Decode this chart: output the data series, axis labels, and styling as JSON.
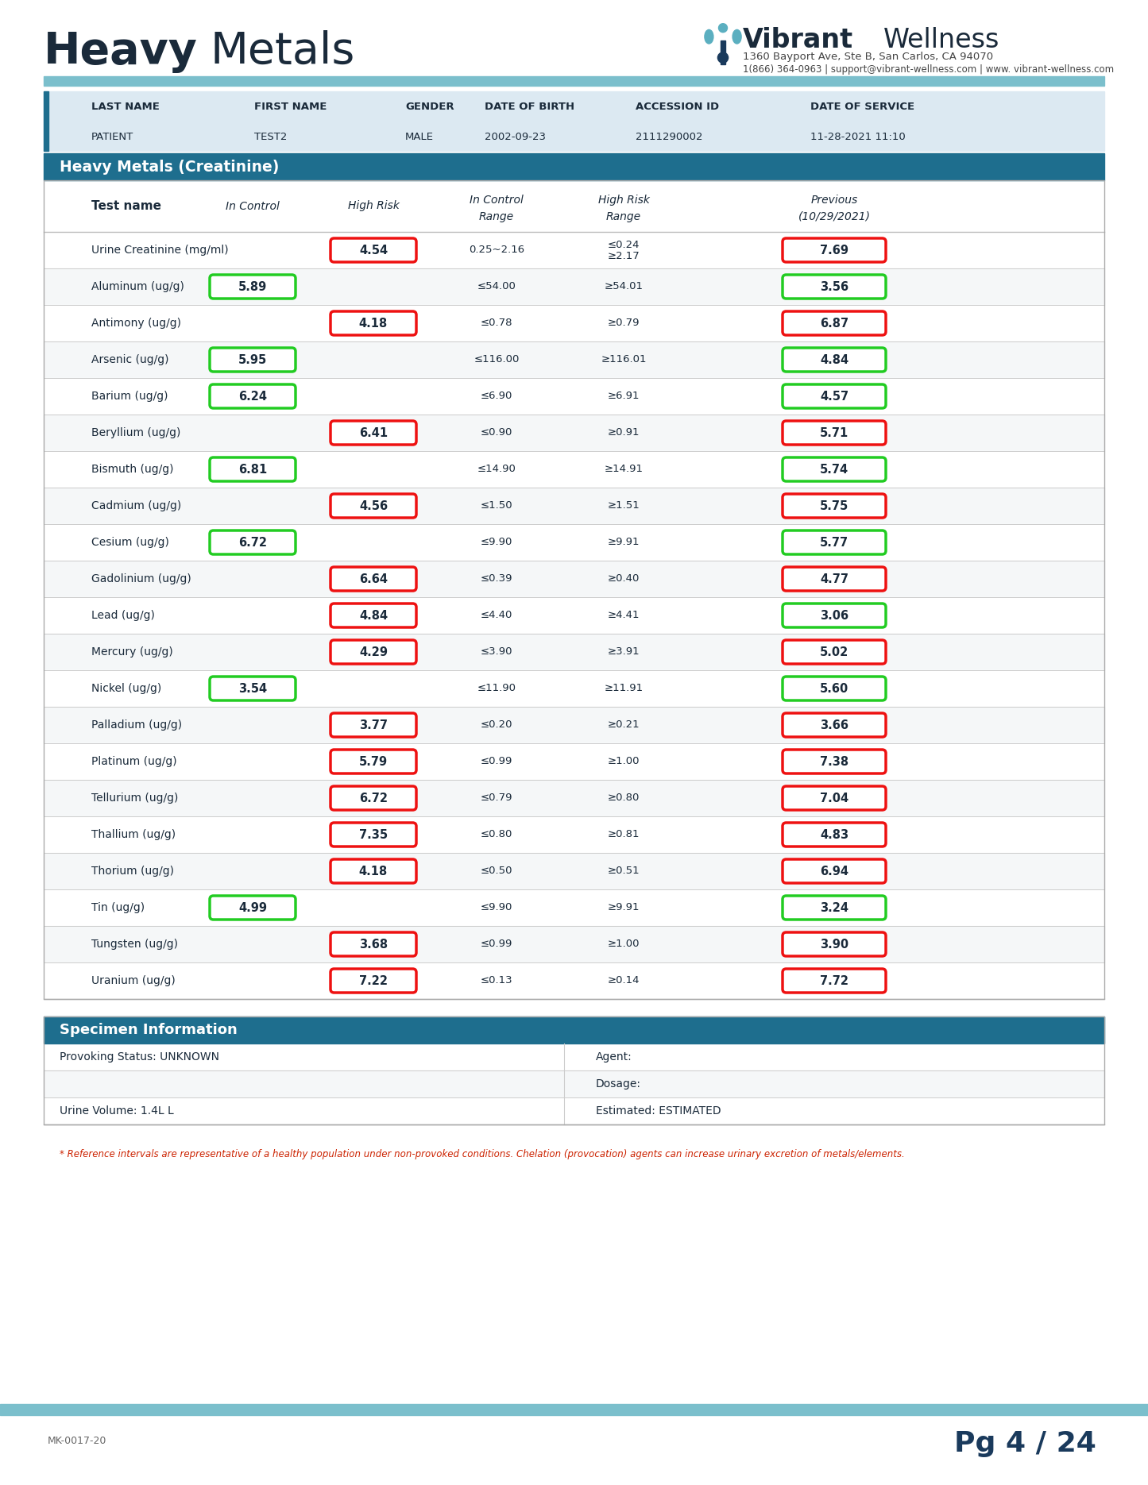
{
  "title_heavy": "Heavy",
  "title_metals": "Metals",
  "brand_vibrant": "Vibrant",
  "brand_wellness": "Wellness",
  "brand_address": "1360 Bayport Ave, Ste B, San Carlos, CA 94070",
  "brand_contact": "1(866) 364-0963 | support@vibrant-wellness.com | www. vibrant-wellness.com",
  "patient_fields": [
    "LAST NAME",
    "FIRST NAME",
    "GENDER",
    "DATE OF BIRTH",
    "ACCESSION ID",
    "DATE OF SERVICE"
  ],
  "patient_values": [
    "PATIENT",
    "TEST2",
    "MALE",
    "2002-09-23",
    "2111290002",
    "11-28-2021 11:10"
  ],
  "section_title": "Heavy Metals (Creatinine)",
  "col_headers": [
    "Test name",
    "In Control",
    "High Risk",
    "In Control\nRange",
    "High Risk\nRange",
    "Previous\n(10/29/2021)"
  ],
  "rows": [
    {
      "name": "Urine Creatinine (mg/ml)",
      "in_control": null,
      "high_risk": "4.54",
      "in_control_range": "0.25~2.16",
      "high_risk_range": "≤0.24\n≥2.17",
      "previous": "7.69",
      "in_control_color": null,
      "high_risk_color": "red",
      "previous_color": "red"
    },
    {
      "name": "Aluminum (ug/g)",
      "in_control": "5.89",
      "high_risk": null,
      "in_control_range": "≤54.00",
      "high_risk_range": "≥54.01",
      "previous": "3.56",
      "in_control_color": "green",
      "high_risk_color": null,
      "previous_color": "green"
    },
    {
      "name": "Antimony (ug/g)",
      "in_control": null,
      "high_risk": "4.18",
      "in_control_range": "≤0.78",
      "high_risk_range": "≥0.79",
      "previous": "6.87",
      "in_control_color": null,
      "high_risk_color": "red",
      "previous_color": "red"
    },
    {
      "name": "Arsenic (ug/g)",
      "in_control": "5.95",
      "high_risk": null,
      "in_control_range": "≤116.00",
      "high_risk_range": "≥116.01",
      "previous": "4.84",
      "in_control_color": "green",
      "high_risk_color": null,
      "previous_color": "green"
    },
    {
      "name": "Barium (ug/g)",
      "in_control": "6.24",
      "high_risk": null,
      "in_control_range": "≤6.90",
      "high_risk_range": "≥6.91",
      "previous": "4.57",
      "in_control_color": "green",
      "high_risk_color": null,
      "previous_color": "green"
    },
    {
      "name": "Beryllium (ug/g)",
      "in_control": null,
      "high_risk": "6.41",
      "in_control_range": "≤0.90",
      "high_risk_range": "≥0.91",
      "previous": "5.71",
      "in_control_color": null,
      "high_risk_color": "red",
      "previous_color": "red"
    },
    {
      "name": "Bismuth (ug/g)",
      "in_control": "6.81",
      "high_risk": null,
      "in_control_range": "≤14.90",
      "high_risk_range": "≥14.91",
      "previous": "5.74",
      "in_control_color": "green",
      "high_risk_color": null,
      "previous_color": "green"
    },
    {
      "name": "Cadmium (ug/g)",
      "in_control": null,
      "high_risk": "4.56",
      "in_control_range": "≤1.50",
      "high_risk_range": "≥1.51",
      "previous": "5.75",
      "in_control_color": null,
      "high_risk_color": "red",
      "previous_color": "red"
    },
    {
      "name": "Cesium (ug/g)",
      "in_control": "6.72",
      "high_risk": null,
      "in_control_range": "≤9.90",
      "high_risk_range": "≥9.91",
      "previous": "5.77",
      "in_control_color": "green",
      "high_risk_color": null,
      "previous_color": "green"
    },
    {
      "name": "Gadolinium (ug/g)",
      "in_control": null,
      "high_risk": "6.64",
      "in_control_range": "≤0.39",
      "high_risk_range": "≥0.40",
      "previous": "4.77",
      "in_control_color": null,
      "high_risk_color": "red",
      "previous_color": "red"
    },
    {
      "name": "Lead (ug/g)",
      "in_control": null,
      "high_risk": "4.84",
      "in_control_range": "≤4.40",
      "high_risk_range": "≥4.41",
      "previous": "3.06",
      "in_control_color": null,
      "high_risk_color": "red",
      "previous_color": "green"
    },
    {
      "name": "Mercury (ug/g)",
      "in_control": null,
      "high_risk": "4.29",
      "in_control_range": "≤3.90",
      "high_risk_range": "≥3.91",
      "previous": "5.02",
      "in_control_color": null,
      "high_risk_color": "red",
      "previous_color": "red"
    },
    {
      "name": "Nickel (ug/g)",
      "in_control": "3.54",
      "high_risk": null,
      "in_control_range": "≤11.90",
      "high_risk_range": "≥11.91",
      "previous": "5.60",
      "in_control_color": "green",
      "high_risk_color": null,
      "previous_color": "green"
    },
    {
      "name": "Palladium (ug/g)",
      "in_control": null,
      "high_risk": "3.77",
      "in_control_range": "≤0.20",
      "high_risk_range": "≥0.21",
      "previous": "3.66",
      "in_control_color": null,
      "high_risk_color": "red",
      "previous_color": "red"
    },
    {
      "name": "Platinum (ug/g)",
      "in_control": null,
      "high_risk": "5.79",
      "in_control_range": "≤0.99",
      "high_risk_range": "≥1.00",
      "previous": "7.38",
      "in_control_color": null,
      "high_risk_color": "red",
      "previous_color": "red"
    },
    {
      "name": "Tellurium (ug/g)",
      "in_control": null,
      "high_risk": "6.72",
      "in_control_range": "≤0.79",
      "high_risk_range": "≥0.80",
      "previous": "7.04",
      "in_control_color": null,
      "high_risk_color": "red",
      "previous_color": "red"
    },
    {
      "name": "Thallium (ug/g)",
      "in_control": null,
      "high_risk": "7.35",
      "in_control_range": "≤0.80",
      "high_risk_range": "≥0.81",
      "previous": "4.83",
      "in_control_color": null,
      "high_risk_color": "red",
      "previous_color": "red"
    },
    {
      "name": "Thorium (ug/g)",
      "in_control": null,
      "high_risk": "4.18",
      "in_control_range": "≤0.50",
      "high_risk_range": "≥0.51",
      "previous": "6.94",
      "in_control_color": null,
      "high_risk_color": "red",
      "previous_color": "red"
    },
    {
      "name": "Tin (ug/g)",
      "in_control": "4.99",
      "high_risk": null,
      "in_control_range": "≤9.90",
      "high_risk_range": "≥9.91",
      "previous": "3.24",
      "in_control_color": "green",
      "high_risk_color": null,
      "previous_color": "green"
    },
    {
      "name": "Tungsten (ug/g)",
      "in_control": null,
      "high_risk": "3.68",
      "in_control_range": "≤0.99",
      "high_risk_range": "≥1.00",
      "previous": "3.90",
      "in_control_color": null,
      "high_risk_color": "red",
      "previous_color": "red"
    },
    {
      "name": "Uranium (ug/g)",
      "in_control": null,
      "high_risk": "7.22",
      "in_control_range": "≤0.13",
      "high_risk_range": "≥0.14",
      "previous": "7.72",
      "in_control_color": null,
      "high_risk_color": "red",
      "previous_color": "red"
    }
  ],
  "specimen_title": "Specimen Information",
  "specimen_fields": [
    {
      "label": "Provoking Status: UNKNOWN",
      "right": "Agent:"
    },
    {
      "label": "",
      "right": "Dosage:"
    },
    {
      "label": "Urine Volume: 1.4L L",
      "right": "Estimated: ESTIMATED"
    }
  ],
  "footnote": "* Reference intervals are representative of a healthy population under non-provoked conditions. Chelation (provocation) agents can increase urinary excretion of metals/elements.",
  "page": "Pg 4 / 24",
  "doc_id": "MK-0017-20",
  "bg_color": "#ffffff",
  "header_teal": "#7bbfcc",
  "section_header_color": "#1e6e8e",
  "patient_bg": "#dce9f2",
  "row_alt_color": "#f5f7f8",
  "row_color": "#ffffff",
  "green_box_color": "#22cc22",
  "red_box_color": "#ee1111",
  "page_color": "#1a3a5c",
  "footnote_color": "#cc2200"
}
